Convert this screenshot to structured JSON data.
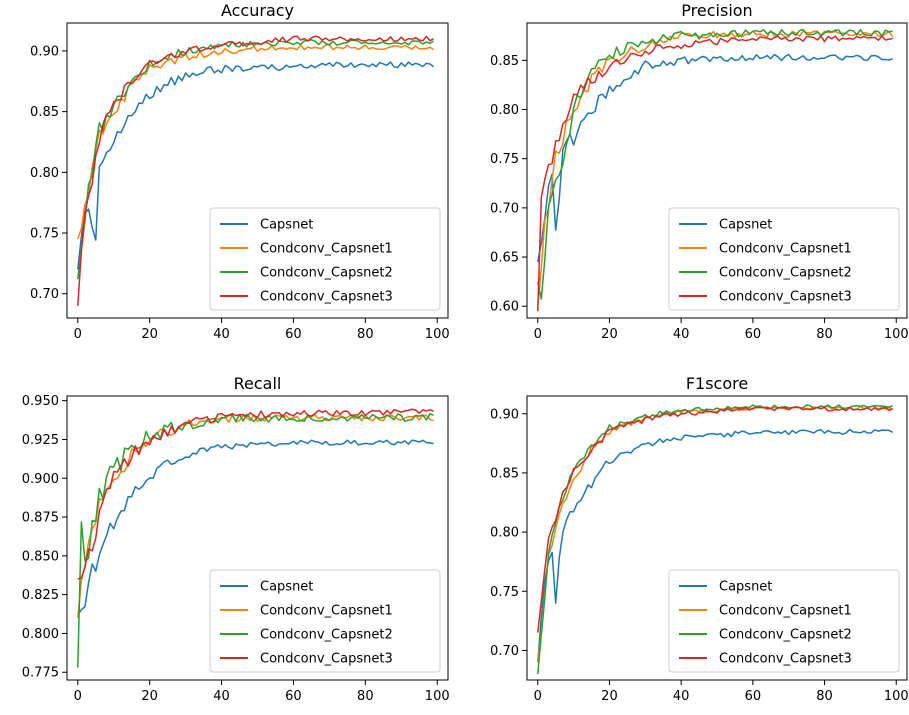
{
  "colors": {
    "Capsnet": "#1f77b4",
    "Condconv_Capsnet1": "#ff7f0e",
    "Condconv_Capsnet2": "#2ca02c",
    "Condconv_Capsnet3": "#d62728"
  },
  "chart_data": [
    {
      "type": "line",
      "title": "Accuracy",
      "xlim": [
        -3,
        103
      ],
      "ylim": [
        0.68,
        0.923
      ],
      "xticks": [
        0,
        20,
        40,
        60,
        80,
        100
      ],
      "yticks": [
        0.7,
        0.75,
        0.8,
        0.85,
        0.9
      ],
      "legend": "lower-right",
      "series": [
        {
          "name": "Capsnet",
          "start": 0.72,
          "final": 0.888,
          "tau": 14,
          "noise": 0.01,
          "anchors": [
            [
              0,
              0.72
            ],
            [
              1,
              0.74
            ],
            [
              2,
              0.76
            ],
            [
              3,
              0.77
            ],
            [
              5,
              0.74
            ],
            [
              6,
              0.8
            ],
            [
              8,
              0.82
            ],
            [
              10,
              0.83
            ],
            [
              15,
              0.85
            ],
            [
              20,
              0.865
            ],
            [
              30,
              0.88
            ],
            [
              40,
              0.885
            ],
            [
              60,
              0.887
            ],
            [
              80,
              0.889
            ],
            [
              99,
              0.888
            ]
          ]
        },
        {
          "name": "Condconv_Capsnet1",
          "start": 0.745,
          "final": 0.903,
          "tau": 10,
          "noise": 0.008,
          "anchors": [
            [
              0,
              0.745
            ],
            [
              3,
              0.785
            ],
            [
              6,
              0.83
            ],
            [
              10,
              0.85
            ],
            [
              15,
              0.87
            ],
            [
              20,
              0.885
            ],
            [
              30,
              0.895
            ],
            [
              40,
              0.9
            ],
            [
              60,
              0.903
            ],
            [
              99,
              0.903
            ]
          ]
        },
        {
          "name": "Condconv_Capsnet2",
          "start": 0.712,
          "final": 0.907,
          "tau": 10,
          "noise": 0.008,
          "anchors": [
            [
              0,
              0.712
            ],
            [
              3,
              0.785
            ],
            [
              6,
              0.835
            ],
            [
              10,
              0.855
            ],
            [
              15,
              0.875
            ],
            [
              20,
              0.89
            ],
            [
              30,
              0.9
            ],
            [
              40,
              0.905
            ],
            [
              60,
              0.907
            ],
            [
              99,
              0.907
            ]
          ]
        },
        {
          "name": "Condconv_Capsnet3",
          "start": 0.69,
          "final": 0.91,
          "tau": 10,
          "noise": 0.008,
          "anchors": [
            [
              0,
              0.69
            ],
            [
              2,
              0.77
            ],
            [
              4,
              0.79
            ],
            [
              6,
              0.83
            ],
            [
              10,
              0.855
            ],
            [
              15,
              0.875
            ],
            [
              20,
              0.89
            ],
            [
              30,
              0.9
            ],
            [
              40,
              0.905
            ],
            [
              60,
              0.91
            ],
            [
              99,
              0.91
            ]
          ]
        }
      ]
    },
    {
      "type": "line",
      "title": "Precision",
      "xlim": [
        -3,
        103
      ],
      "ylim": [
        0.588,
        0.888
      ],
      "xticks": [
        0,
        20,
        40,
        60,
        80,
        100
      ],
      "yticks": [
        0.6,
        0.65,
        0.7,
        0.75,
        0.8,
        0.85
      ],
      "legend": "lower-right",
      "series": [
        {
          "name": "Capsnet",
          "start": 0.645,
          "final": 0.853,
          "tau": 14,
          "noise": 0.012,
          "anchors": [
            [
              0,
              0.645
            ],
            [
              2,
              0.7
            ],
            [
              4,
              0.74
            ],
            [
              5,
              0.67
            ],
            [
              7,
              0.76
            ],
            [
              10,
              0.77
            ],
            [
              15,
              0.8
            ],
            [
              20,
              0.82
            ],
            [
              25,
              0.835
            ],
            [
              30,
              0.845
            ],
            [
              40,
              0.85
            ],
            [
              60,
              0.853
            ],
            [
              99,
              0.853
            ]
          ]
        },
        {
          "name": "Condconv_Capsnet1",
          "start": 0.6,
          "final": 0.877,
          "tau": 10,
          "noise": 0.012,
          "anchors": [
            [
              0,
              0.6
            ],
            [
              2,
              0.68
            ],
            [
              5,
              0.75
            ],
            [
              8,
              0.78
            ],
            [
              10,
              0.8
            ],
            [
              15,
              0.83
            ],
            [
              20,
              0.85
            ],
            [
              30,
              0.865
            ],
            [
              40,
              0.875
            ],
            [
              60,
              0.877
            ],
            [
              99,
              0.877
            ]
          ]
        },
        {
          "name": "Condconv_Capsnet2",
          "start": 0.625,
          "final": 0.878,
          "tau": 10,
          "noise": 0.013,
          "anchors": [
            [
              0,
              0.625
            ],
            [
              1,
              0.6
            ],
            [
              3,
              0.69
            ],
            [
              5,
              0.72
            ],
            [
              8,
              0.77
            ],
            [
              10,
              0.8
            ],
            [
              15,
              0.84
            ],
            [
              20,
              0.855
            ],
            [
              30,
              0.87
            ],
            [
              40,
              0.875
            ],
            [
              60,
              0.878
            ],
            [
              99,
              0.878
            ]
          ]
        },
        {
          "name": "Condconv_Capsnet3",
          "start": 0.595,
          "final": 0.872,
          "tau": 10,
          "noise": 0.012,
          "anchors": [
            [
              0,
              0.595
            ],
            [
              1,
              0.72
            ],
            [
              3,
              0.74
            ],
            [
              5,
              0.76
            ],
            [
              8,
              0.79
            ],
            [
              10,
              0.81
            ],
            [
              15,
              0.83
            ],
            [
              20,
              0.845
            ],
            [
              30,
              0.86
            ],
            [
              40,
              0.865
            ],
            [
              60,
              0.872
            ],
            [
              99,
              0.872
            ]
          ]
        }
      ]
    },
    {
      "type": "line",
      "title": "Recall",
      "xlim": [
        -3,
        103
      ],
      "ylim": [
        0.77,
        0.953
      ],
      "xticks": [
        0,
        20,
        40,
        60,
        80,
        100
      ],
      "yticks": [
        0.775,
        0.8,
        0.825,
        0.85,
        0.875,
        0.9,
        0.925,
        0.95
      ],
      "legend": "lower-right",
      "series": [
        {
          "name": "Capsnet",
          "start": 0.812,
          "final": 0.923,
          "tau": 14,
          "noise": 0.006,
          "anchors": [
            [
              0,
              0.812
            ],
            [
              2,
              0.82
            ],
            [
              4,
              0.84
            ],
            [
              6,
              0.85
            ],
            [
              8,
              0.865
            ],
            [
              10,
              0.87
            ],
            [
              15,
              0.89
            ],
            [
              20,
              0.9
            ],
            [
              25,
              0.91
            ],
            [
              30,
              0.915
            ],
            [
              40,
              0.92
            ],
            [
              60,
              0.923
            ],
            [
              99,
              0.923
            ]
          ]
        },
        {
          "name": "Condconv_Capsnet1",
          "start": 0.81,
          "final": 0.939,
          "tau": 10,
          "noise": 0.008,
          "anchors": [
            [
              0,
              0.81
            ],
            [
              2,
              0.85
            ],
            [
              4,
              0.87
            ],
            [
              6,
              0.885
            ],
            [
              10,
              0.9
            ],
            [
              15,
              0.915
            ],
            [
              20,
              0.925
            ],
            [
              30,
              0.935
            ],
            [
              40,
              0.938
            ],
            [
              60,
              0.939
            ],
            [
              99,
              0.939
            ]
          ]
        },
        {
          "name": "Condconv_Capsnet2",
          "start": 0.778,
          "final": 0.939,
          "tau": 10,
          "noise": 0.01,
          "anchors": [
            [
              0,
              0.778
            ],
            [
              1,
              0.88
            ],
            [
              2,
              0.84
            ],
            [
              4,
              0.87
            ],
            [
              6,
              0.89
            ],
            [
              10,
              0.905
            ],
            [
              15,
              0.92
            ],
            [
              20,
              0.928
            ],
            [
              30,
              0.935
            ],
            [
              40,
              0.938
            ],
            [
              60,
              0.939
            ],
            [
              99,
              0.939
            ]
          ]
        },
        {
          "name": "Condconv_Capsnet3",
          "start": 0.835,
          "final": 0.943,
          "tau": 10,
          "noise": 0.008,
          "anchors": [
            [
              0,
              0.835
            ],
            [
              2,
              0.84
            ],
            [
              4,
              0.86
            ],
            [
              6,
              0.875
            ],
            [
              10,
              0.9
            ],
            [
              15,
              0.915
            ],
            [
              20,
              0.925
            ],
            [
              30,
              0.935
            ],
            [
              40,
              0.94
            ],
            [
              60,
              0.942
            ],
            [
              99,
              0.943
            ]
          ]
        }
      ]
    },
    {
      "type": "line",
      "title": "F1score",
      "xlim": [
        -3,
        103
      ],
      "ylim": [
        0.675,
        0.915
      ],
      "xticks": [
        0,
        20,
        40,
        60,
        80,
        100
      ],
      "yticks": [
        0.7,
        0.75,
        0.8,
        0.85,
        0.9
      ],
      "legend": "lower-right",
      "series": [
        {
          "name": "Capsnet",
          "start": 0.69,
          "final": 0.885,
          "tau": 14,
          "noise": 0.008,
          "anchors": [
            [
              0,
              0.69
            ],
            [
              2,
              0.76
            ],
            [
              4,
              0.78
            ],
            [
              5,
              0.745
            ],
            [
              7,
              0.8
            ],
            [
              10,
              0.82
            ],
            [
              15,
              0.84
            ],
            [
              20,
              0.86
            ],
            [
              30,
              0.875
            ],
            [
              40,
              0.88
            ],
            [
              60,
              0.884
            ],
            [
              99,
              0.885
            ]
          ]
        },
        {
          "name": "Condconv_Capsnet1",
          "start": 0.69,
          "final": 0.905,
          "tau": 10,
          "noise": 0.006,
          "anchors": [
            [
              0,
              0.69
            ],
            [
              3,
              0.78
            ],
            [
              6,
              0.82
            ],
            [
              10,
              0.845
            ],
            [
              15,
              0.87
            ],
            [
              20,
              0.885
            ],
            [
              30,
              0.897
            ],
            [
              40,
              0.902
            ],
            [
              60,
              0.905
            ],
            [
              99,
              0.905
            ]
          ]
        },
        {
          "name": "Condconv_Capsnet2",
          "start": 0.68,
          "final": 0.906,
          "tau": 10,
          "noise": 0.006,
          "anchors": [
            [
              0,
              0.68
            ],
            [
              3,
              0.785
            ],
            [
              6,
              0.825
            ],
            [
              10,
              0.85
            ],
            [
              15,
              0.873
            ],
            [
              20,
              0.888
            ],
            [
              30,
              0.898
            ],
            [
              40,
              0.903
            ],
            [
              60,
              0.906
            ],
            [
              99,
              0.906
            ]
          ]
        },
        {
          "name": "Condconv_Capsnet3",
          "start": 0.715,
          "final": 0.904,
          "tau": 10,
          "noise": 0.006,
          "anchors": [
            [
              0,
              0.715
            ],
            [
              3,
              0.79
            ],
            [
              6,
              0.825
            ],
            [
              10,
              0.85
            ],
            [
              15,
              0.87
            ],
            [
              20,
              0.885
            ],
            [
              30,
              0.895
            ],
            [
              40,
              0.9
            ],
            [
              60,
              0.904
            ],
            [
              99,
              0.904
            ]
          ]
        }
      ]
    }
  ]
}
